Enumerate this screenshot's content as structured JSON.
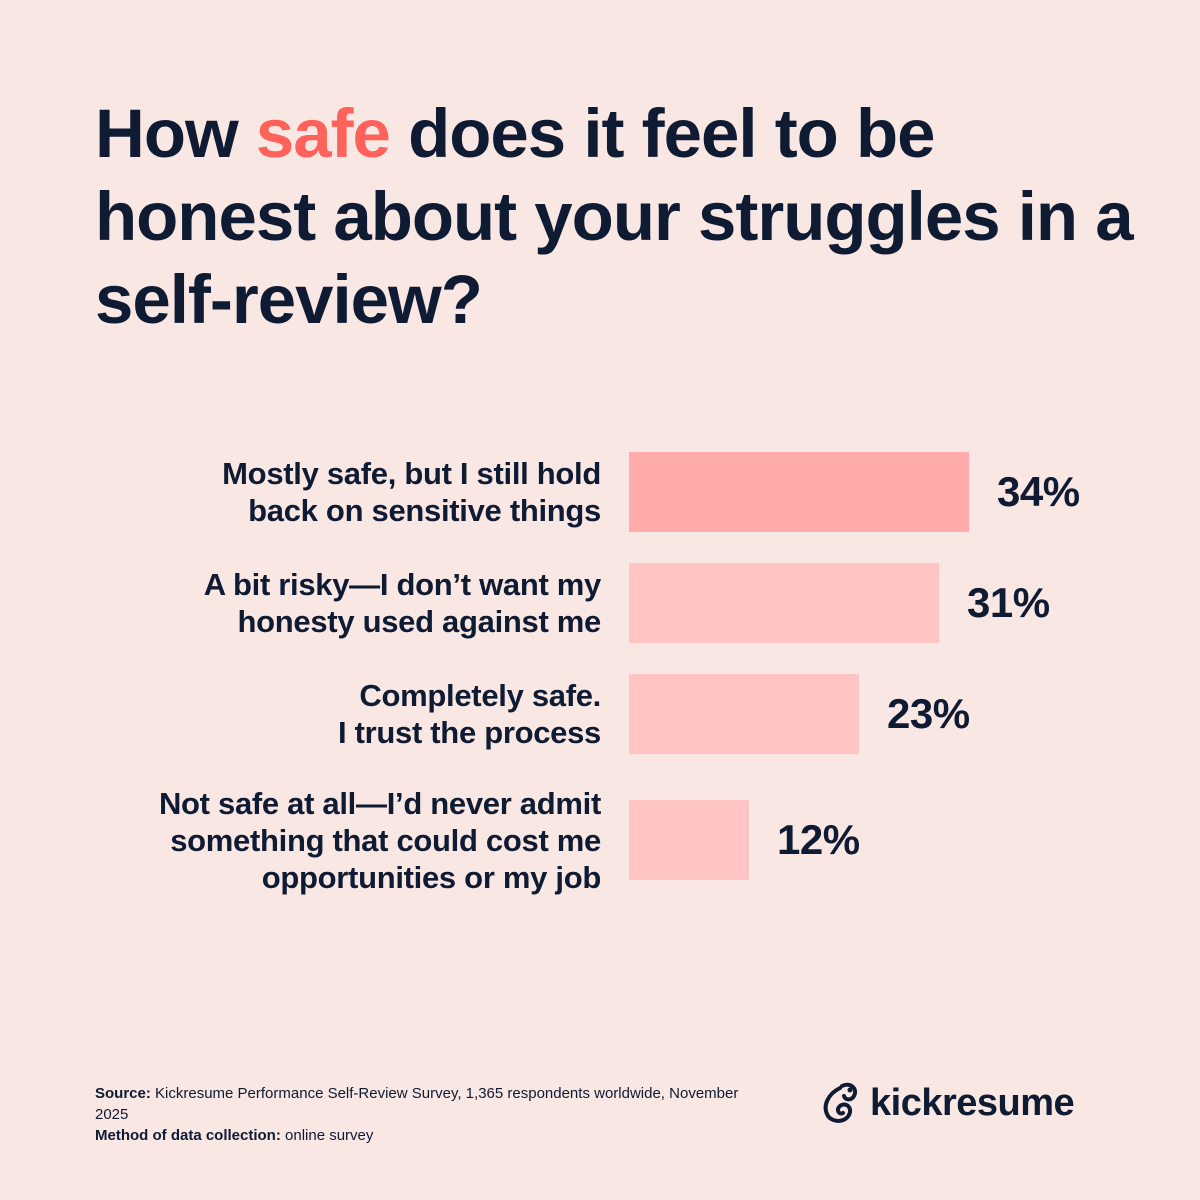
{
  "title": {
    "before": "How ",
    "highlight": "safe",
    "after": " does it feel to be honest about your struggles in a self-review?"
  },
  "colors": {
    "background": "#f9e7e3",
    "text": "#0f1a33",
    "accent": "#ff625a",
    "bar_top": "#ffaaab",
    "bar": "#ffc4c3"
  },
  "chart_data": {
    "type": "bar",
    "orientation": "horizontal",
    "categories": [
      "Mostly safe, but I still hold back on sensitive things",
      "A bit risky—I don’t want my honesty used against me",
      "Completely safe. I trust the process",
      "Not safe at all—I’d never admit something that could cost me opportunities or my job"
    ],
    "category_lines": [
      [
        "Mostly safe, but I still hold",
        "back on sensitive things"
      ],
      [
        "A bit risky—I don’t want my",
        "honesty used against me"
      ],
      [
        "Completely safe.",
        "I trust the process"
      ],
      [
        "Not safe at all—I’d never admit",
        "something that could cost me",
        "opportunities or my job"
      ]
    ],
    "values": [
      34,
      31,
      23,
      12
    ],
    "data_labels": [
      "34%",
      "31%",
      "23%",
      "12%"
    ],
    "unit": "%",
    "grid": false,
    "legend": "none"
  },
  "footer": {
    "source_label": "Source:",
    "source_text": " Kickresume Performance Self-Review Survey, 1,365 respondents worldwide, November 2025",
    "method_label": "Method of data collection:",
    "method_text": " online survey"
  },
  "logo": {
    "text": "kickresume",
    "icon": "kickresume-chameleon-icon"
  }
}
